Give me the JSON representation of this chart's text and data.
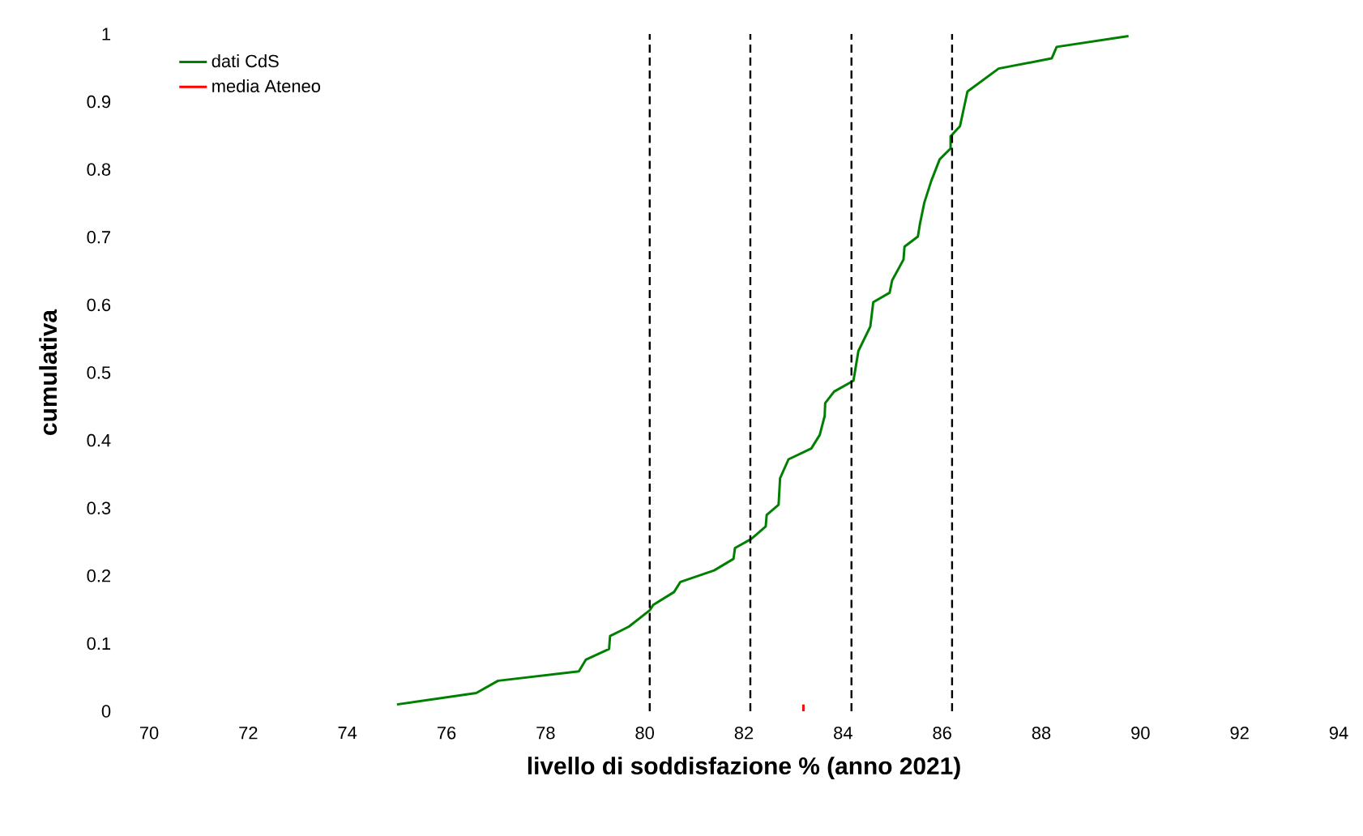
{
  "chart_data": {
    "type": "line",
    "xlabel": "livello di soddisfazione % (anno 2021)",
    "ylabel": "cumulativa",
    "xlim": [
      70,
      94
    ],
    "xticks": [
      70,
      72,
      74,
      76,
      78,
      80,
      82,
      84,
      86,
      88,
      90,
      92,
      94
    ],
    "ylim": [
      0,
      1
    ],
    "yticks": [
      0,
      0.1,
      0.2,
      0.3,
      0.4,
      0.5,
      0.6,
      0.7,
      0.8,
      0.9,
      1
    ],
    "grid": false,
    "legend": "top left",
    "marker": "none",
    "line_style": "solid",
    "series": [
      {
        "name": "dati CdS",
        "color": "#008000",
        "x": [
          75.0,
          76.6,
          77.04,
          78.67,
          78.81,
          79.28,
          79.3,
          79.68,
          80.1,
          80.17,
          80.59,
          80.72,
          81.4,
          81.79,
          81.82,
          82.14,
          82.19,
          82.44,
          82.46,
          82.7,
          82.73,
          82.9,
          83.36,
          83.53,
          83.63,
          83.64,
          83.82,
          84.21,
          84.31,
          84.55,
          84.61,
          84.94,
          84.99,
          85.22,
          85.24,
          85.51,
          85.55,
          85.64,
          85.78,
          85.95,
          86.17,
          86.17,
          86.36,
          86.51,
          87.14,
          88.21,
          88.31,
          89.76
        ],
        "values": [
          0.01,
          0.027,
          0.045,
          0.059,
          0.076,
          0.092,
          0.111,
          0.125,
          0.149,
          0.157,
          0.176,
          0.191,
          0.208,
          0.225,
          0.241,
          0.254,
          0.257,
          0.273,
          0.29,
          0.305,
          0.344,
          0.372,
          0.388,
          0.408,
          0.436,
          0.455,
          0.472,
          0.488,
          0.532,
          0.568,
          0.604,
          0.618,
          0.636,
          0.667,
          0.686,
          0.701,
          0.719,
          0.751,
          0.783,
          0.815,
          0.831,
          0.849,
          0.864,
          0.915,
          0.949,
          0.964,
          0.981,
          0.997
        ]
      },
      {
        "name": "media Ateneo",
        "color": "#ff0000",
        "x": [
          83.2,
          83.2
        ],
        "values": [
          0,
          0.01
        ]
      }
    ],
    "ref_lines": [
      {
        "axis": "x",
        "value": 80.1,
        "color": "#000000",
        "line_style": "dashed"
      },
      {
        "axis": "x",
        "value": 82.13,
        "color": "#000000",
        "line_style": "dashed"
      },
      {
        "axis": "x",
        "value": 84.17,
        "color": "#000000",
        "line_style": "dashed"
      },
      {
        "axis": "x",
        "value": 86.2,
        "color": "#000000",
        "line_style": "dashed"
      }
    ]
  }
}
